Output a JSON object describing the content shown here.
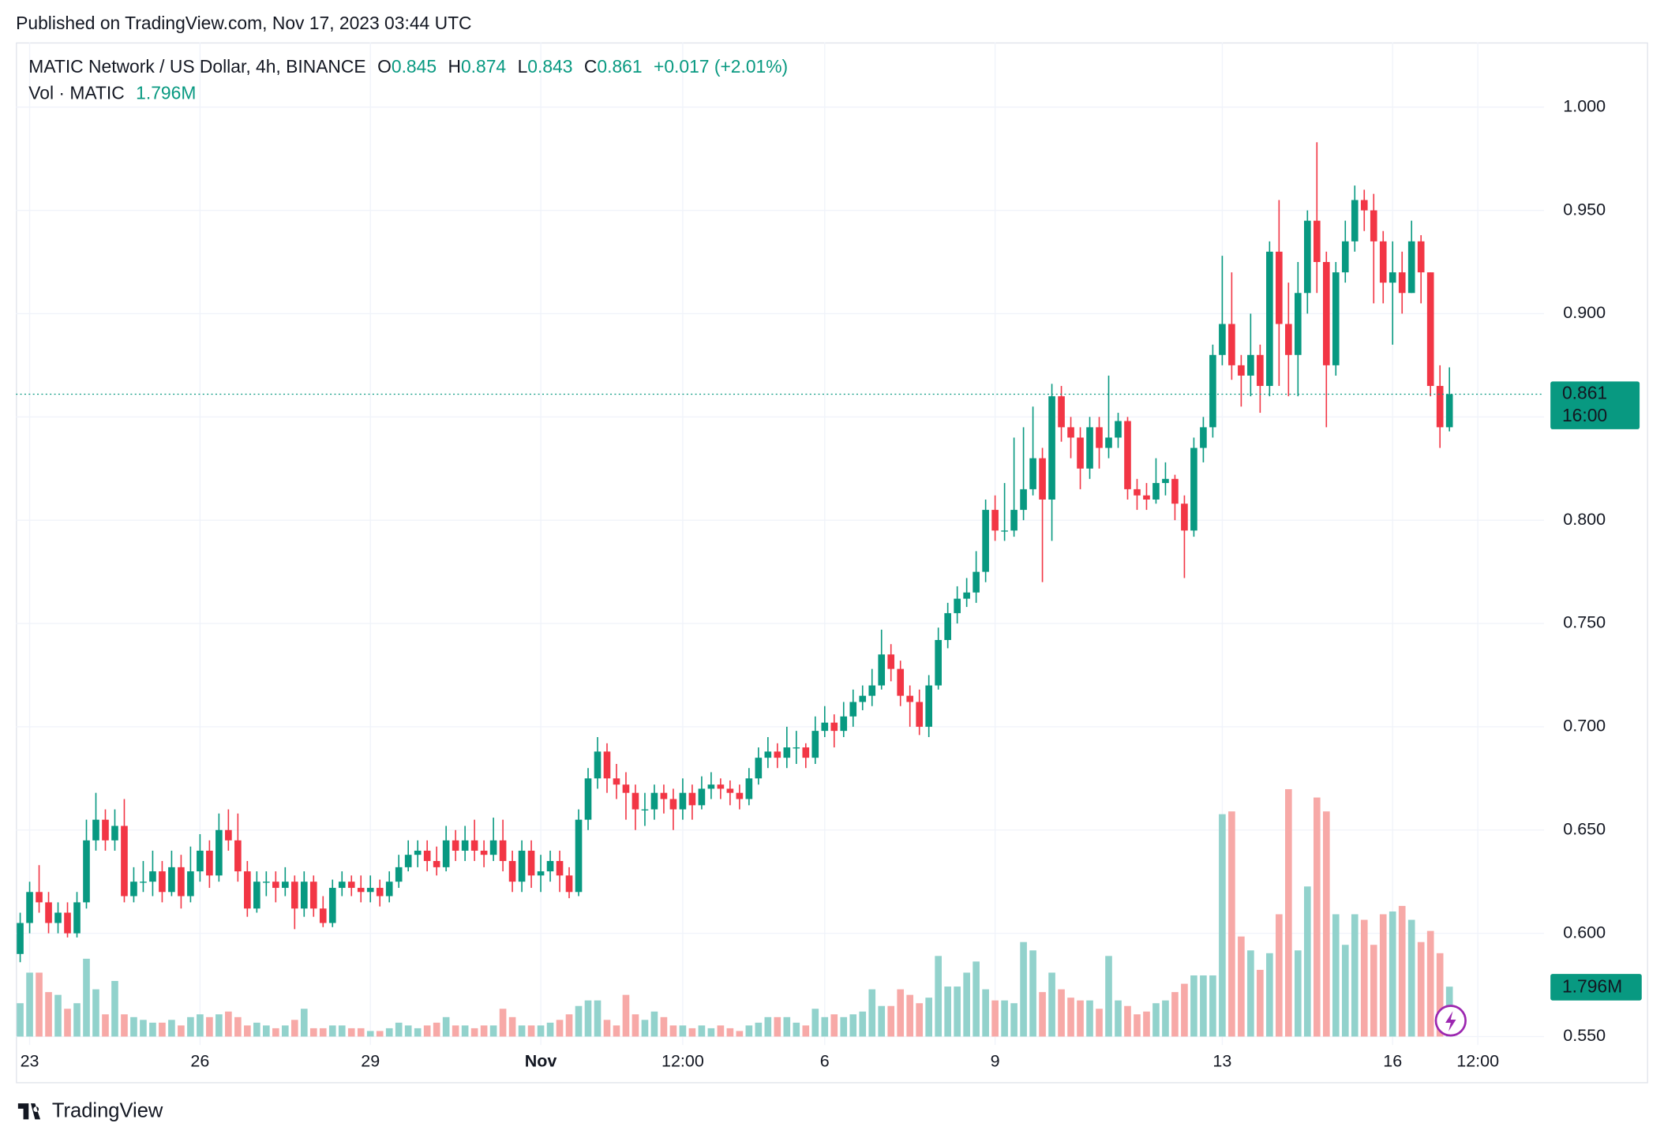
{
  "published": "Published on TradingView.com, Nov 17, 2023 03:44 UTC",
  "brand": "TradingView",
  "chart_data": {
    "type": "candlestick",
    "symbol": "MATIC Network / US Dollar, 4h, BINANCE",
    "open_label": "O",
    "high_label": "H",
    "low_label": "L",
    "close_label": "C",
    "change": "+0.017 (+2.01%)",
    "volume_title": "Vol · MATIC",
    "last_volume_label": "1.796M",
    "countdown": "16:00",
    "up_color": "#089981",
    "down_color": "#f23645",
    "volume_up_color": "#92d2cc",
    "volume_down_color": "#f7a9a7",
    "grid": true,
    "xlim": [
      -0.45,
      161
    ],
    "xticks": [
      {
        "value": 1,
        "label": "23"
      },
      {
        "value": 19,
        "label": "26"
      },
      {
        "value": 37,
        "label": "29"
      },
      {
        "value": 55,
        "label": "Nov"
      },
      {
        "value": 70,
        "label": "12:00"
      },
      {
        "value": 85,
        "label": "6"
      },
      {
        "value": 103,
        "label": "9"
      },
      {
        "value": 127,
        "label": "13"
      },
      {
        "value": 145,
        "label": "16"
      },
      {
        "value": 154,
        "label": "12:00"
      }
    ],
    "ylim": [
      0.5459,
      1.0313
    ],
    "yticks": [
      {
        "value": 1.0,
        "label": "1.000"
      },
      {
        "value": 0.95,
        "label": "0.950"
      },
      {
        "value": 0.9,
        "label": "0.900"
      },
      {
        "value": 0.85,
        "label": "0.850"
      },
      {
        "value": 0.8,
        "label": "0.800"
      },
      {
        "value": 0.75,
        "label": "0.750"
      },
      {
        "value": 0.7,
        "label": "0.700"
      },
      {
        "value": 0.65,
        "label": "0.650"
      },
      {
        "value": 0.6,
        "label": "0.600"
      },
      {
        "value": 0.55,
        "label": "0.550"
      }
    ],
    "volume_lim": [
      0,
      10
    ],
    "open": [
      0.59,
      0.605,
      0.62,
      0.615,
      0.605,
      0.61,
      0.6,
      0.615,
      0.645,
      0.655,
      0.645,
      0.652,
      0.618,
      0.625,
      0.625,
      0.63,
      0.62,
      0.632,
      0.618,
      0.63,
      0.64,
      0.628,
      0.65,
      0.645,
      0.63,
      0.612,
      0.625,
      0.625,
      0.622,
      0.625,
      0.612,
      0.625,
      0.612,
      0.605,
      0.622,
      0.625,
      0.622,
      0.62,
      0.622,
      0.618,
      0.625,
      0.632,
      0.638,
      0.64,
      0.635,
      0.632,
      0.645,
      0.64,
      0.645,
      0.64,
      0.638,
      0.645,
      0.635,
      0.625,
      0.64,
      0.628,
      0.63,
      0.635,
      0.628,
      0.62,
      0.655,
      0.675,
      0.688,
      0.675,
      0.672,
      0.668,
      0.66,
      0.66,
      0.668,
      0.665,
      0.66,
      0.668,
      0.662,
      0.67,
      0.672,
      0.67,
      0.668,
      0.665,
      0.675,
      0.685,
      0.688,
      0.685,
      0.69,
      0.69,
      0.685,
      0.698,
      0.702,
      0.698,
      0.705,
      0.712,
      0.715,
      0.72,
      0.735,
      0.728,
      0.715,
      0.712,
      0.7,
      0.72,
      0.742,
      0.755,
      0.762,
      0.765,
      0.775,
      0.805,
      0.795,
      0.795,
      0.805,
      0.815,
      0.83,
      0.81,
      0.86,
      0.845,
      0.84,
      0.825,
      0.845,
      0.835,
      0.84,
      0.848,
      0.815,
      0.812,
      0.81,
      0.818,
      0.82,
      0.808,
      0.795,
      0.835,
      0.845,
      0.88,
      0.895,
      0.875,
      0.87,
      0.88,
      0.865,
      0.93,
      0.895,
      0.88,
      0.91,
      0.945,
      0.925,
      0.875,
      0.92,
      0.935,
      0.955,
      0.95,
      0.935,
      0.915,
      0.92,
      0.91,
      0.935,
      0.92,
      0.865,
      0.845
    ],
    "high": [
      0.61,
      0.625,
      0.633,
      0.62,
      0.615,
      0.615,
      0.62,
      0.655,
      0.668,
      0.66,
      0.66,
      0.665,
      0.632,
      0.635,
      0.64,
      0.635,
      0.64,
      0.638,
      0.642,
      0.648,
      0.645,
      0.658,
      0.66,
      0.658,
      0.635,
      0.63,
      0.63,
      0.63,
      0.632,
      0.628,
      0.63,
      0.628,
      0.618,
      0.626,
      0.63,
      0.628,
      0.628,
      0.628,
      0.626,
      0.63,
      0.638,
      0.645,
      0.645,
      0.645,
      0.642,
      0.652,
      0.65,
      0.652,
      0.655,
      0.645,
      0.656,
      0.655,
      0.64,
      0.645,
      0.645,
      0.638,
      0.64,
      0.64,
      0.632,
      0.66,
      0.68,
      0.695,
      0.692,
      0.682,
      0.678,
      0.672,
      0.668,
      0.672,
      0.672,
      0.67,
      0.675,
      0.672,
      0.676,
      0.678,
      0.675,
      0.674,
      0.672,
      0.68,
      0.69,
      0.695,
      0.692,
      0.7,
      0.698,
      0.692,
      0.705,
      0.71,
      0.706,
      0.712,
      0.718,
      0.72,
      0.728,
      0.747,
      0.74,
      0.732,
      0.72,
      0.718,
      0.725,
      0.748,
      0.76,
      0.768,
      0.772,
      0.785,
      0.81,
      0.812,
      0.818,
      0.84,
      0.845,
      0.855,
      0.835,
      0.866,
      0.865,
      0.85,
      0.845,
      0.85,
      0.85,
      0.87,
      0.852,
      0.85,
      0.82,
      0.818,
      0.83,
      0.828,
      0.822,
      0.812,
      0.84,
      0.85,
      0.885,
      0.928,
      0.92,
      0.88,
      0.9,
      0.885,
      0.935,
      0.955,
      0.915,
      0.925,
      0.95,
      0.983,
      0.93,
      0.925,
      0.945,
      0.962,
      0.96,
      0.958,
      0.94,
      0.935,
      0.93,
      0.945,
      0.938,
      0.92,
      0.875,
      0.874
    ],
    "low": [
      0.586,
      0.6,
      0.61,
      0.6,
      0.6,
      0.598,
      0.598,
      0.612,
      0.64,
      0.64,
      0.64,
      0.615,
      0.615,
      0.62,
      0.618,
      0.615,
      0.618,
      0.612,
      0.615,
      0.625,
      0.622,
      0.625,
      0.64,
      0.625,
      0.608,
      0.61,
      0.618,
      0.615,
      0.618,
      0.602,
      0.608,
      0.608,
      0.603,
      0.603,
      0.618,
      0.618,
      0.615,
      0.615,
      0.613,
      0.615,
      0.622,
      0.63,
      0.632,
      0.63,
      0.628,
      0.63,
      0.635,
      0.635,
      0.635,
      0.632,
      0.635,
      0.63,
      0.62,
      0.62,
      0.622,
      0.62,
      0.625,
      0.62,
      0.617,
      0.618,
      0.65,
      0.67,
      0.668,
      0.665,
      0.655,
      0.65,
      0.652,
      0.655,
      0.658,
      0.65,
      0.655,
      0.655,
      0.66,
      0.665,
      0.665,
      0.662,
      0.66,
      0.662,
      0.672,
      0.68,
      0.68,
      0.68,
      0.682,
      0.68,
      0.682,
      0.695,
      0.69,
      0.695,
      0.7,
      0.708,
      0.71,
      0.718,
      0.722,
      0.71,
      0.7,
      0.696,
      0.695,
      0.718,
      0.738,
      0.75,
      0.758,
      0.76,
      0.77,
      0.79,
      0.79,
      0.792,
      0.8,
      0.812,
      0.77,
      0.79,
      0.838,
      0.83,
      0.815,
      0.82,
      0.825,
      0.83,
      0.835,
      0.81,
      0.805,
      0.805,
      0.808,
      0.812,
      0.8,
      0.772,
      0.792,
      0.828,
      0.84,
      0.875,
      0.868,
      0.855,
      0.86,
      0.852,
      0.86,
      0.865,
      0.86,
      0.86,
      0.9,
      0.91,
      0.845,
      0.87,
      0.915,
      0.93,
      0.94,
      0.905,
      0.905,
      0.885,
      0.9,
      0.91,
      0.905,
      0.86,
      0.835,
      0.843
    ],
    "close": [
      0.605,
      0.62,
      0.615,
      0.605,
      0.61,
      0.6,
      0.615,
      0.645,
      0.655,
      0.645,
      0.652,
      0.618,
      0.625,
      0.625,
      0.63,
      0.62,
      0.632,
      0.618,
      0.63,
      0.64,
      0.628,
      0.65,
      0.645,
      0.63,
      0.612,
      0.625,
      0.625,
      0.622,
      0.625,
      0.612,
      0.625,
      0.612,
      0.605,
      0.622,
      0.625,
      0.622,
      0.62,
      0.622,
      0.618,
      0.625,
      0.632,
      0.638,
      0.64,
      0.635,
      0.632,
      0.645,
      0.64,
      0.645,
      0.64,
      0.638,
      0.645,
      0.635,
      0.625,
      0.64,
      0.628,
      0.63,
      0.635,
      0.628,
      0.62,
      0.655,
      0.675,
      0.688,
      0.675,
      0.672,
      0.668,
      0.66,
      0.66,
      0.668,
      0.665,
      0.66,
      0.668,
      0.662,
      0.67,
      0.672,
      0.67,
      0.668,
      0.665,
      0.675,
      0.685,
      0.688,
      0.685,
      0.69,
      0.69,
      0.685,
      0.698,
      0.702,
      0.698,
      0.705,
      0.712,
      0.715,
      0.72,
      0.735,
      0.728,
      0.715,
      0.712,
      0.7,
      0.72,
      0.742,
      0.755,
      0.762,
      0.765,
      0.775,
      0.805,
      0.795,
      0.795,
      0.805,
      0.815,
      0.83,
      0.81,
      0.86,
      0.845,
      0.84,
      0.825,
      0.845,
      0.835,
      0.84,
      0.848,
      0.815,
      0.812,
      0.81,
      0.818,
      0.82,
      0.808,
      0.795,
      0.835,
      0.845,
      0.88,
      0.895,
      0.875,
      0.87,
      0.88,
      0.865,
      0.93,
      0.895,
      0.88,
      0.91,
      0.945,
      0.925,
      0.875,
      0.92,
      0.935,
      0.955,
      0.95,
      0.935,
      0.915,
      0.92,
      0.91,
      0.935,
      0.92,
      0.865,
      0.845,
      0.861
    ],
    "volume": [
      1.2,
      2.3,
      2.3,
      1.6,
      1.5,
      1.0,
      1.2,
      2.8,
      1.7,
      0.8,
      2.0,
      0.8,
      0.7,
      0.6,
      0.5,
      0.5,
      0.6,
      0.4,
      0.7,
      0.8,
      0.7,
      0.8,
      0.9,
      0.7,
      0.4,
      0.5,
      0.4,
      0.3,
      0.4,
      0.6,
      1.0,
      0.3,
      0.3,
      0.4,
      0.4,
      0.3,
      0.3,
      0.2,
      0.2,
      0.3,
      0.5,
      0.4,
      0.3,
      0.4,
      0.5,
      0.7,
      0.4,
      0.4,
      0.3,
      0.4,
      0.4,
      1.0,
      0.7,
      0.4,
      0.4,
      0.4,
      0.5,
      0.6,
      0.8,
      1.1,
      1.3,
      1.3,
      0.6,
      0.4,
      1.5,
      0.8,
      0.6,
      0.9,
      0.7,
      0.4,
      0.4,
      0.3,
      0.4,
      0.3,
      0.4,
      0.3,
      0.2,
      0.4,
      0.5,
      0.7,
      0.7,
      0.7,
      0.5,
      0.4,
      1.0,
      0.7,
      0.8,
      0.7,
      0.8,
      0.9,
      1.7,
      1.1,
      1.1,
      1.7,
      1.5,
      1.2,
      1.4,
      2.9,
      1.8,
      1.8,
      2.3,
      2.7,
      1.7,
      1.3,
      1.3,
      1.2,
      3.4,
      3.1,
      1.6,
      2.3,
      1.7,
      1.4,
      1.3,
      1.3,
      1.0,
      2.9,
      1.3,
      1.1,
      0.8,
      0.9,
      1.2,
      1.3,
      1.6,
      1.9,
      2.2,
      2.2,
      2.2,
      8.0,
      8.1,
      3.6,
      3.1,
      2.4,
      3.0,
      4.4,
      8.9,
      3.1,
      5.4,
      8.6,
      8.1,
      4.4,
      3.3,
      4.4,
      4.2,
      3.3,
      4.4,
      4.5,
      4.7,
      4.2,
      3.4,
      3.8,
      3.0,
      1.796
    ]
  }
}
